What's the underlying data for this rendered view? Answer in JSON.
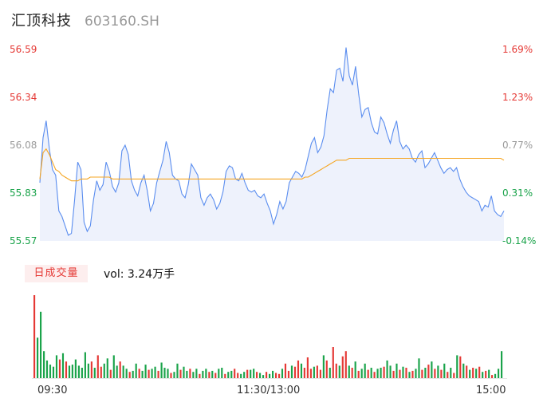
{
  "header": {
    "name": "汇顶科技",
    "code": "603160.SH"
  },
  "volume_panel": {
    "tag": "日成交量",
    "value_label": "vol: 3.24万手"
  },
  "colors": {
    "price_line": "#5a8def",
    "avg_line": "#f5a623",
    "up": "#e53935",
    "down": "#1aa34a",
    "area": "#eef2fc"
  },
  "chart_data": {
    "type": "line",
    "title": "",
    "price_axis": {
      "ticks": [
        "56.59",
        "56.34",
        "56.08",
        "55.83",
        "55.57"
      ],
      "ylim": [
        55.57,
        56.59
      ]
    },
    "pct_axis": {
      "ticks": [
        "1.69%",
        "1.23%",
        "0.77%",
        "0.31%",
        "-0.14%"
      ]
    },
    "x_ticks": [
      "09:30",
      "11:30/13:00",
      "15:00"
    ],
    "series": [
      {
        "values": [
          55.88,
          56.12,
          56.21,
          56.06,
          55.95,
          55.92,
          55.73,
          55.7,
          55.65,
          55.6,
          55.61,
          55.79,
          55.99,
          55.95,
          55.67,
          55.62,
          55.65,
          55.79,
          55.89,
          55.84,
          55.87,
          55.99,
          55.94,
          55.86,
          55.83,
          55.88,
          56.05,
          56.08,
          56.03,
          55.89,
          55.84,
          55.81,
          55.88,
          55.92,
          55.84,
          55.73,
          55.77,
          55.88,
          55.94,
          56.0,
          56.1,
          56.04,
          55.92,
          55.9,
          55.89,
          55.82,
          55.8,
          55.87,
          55.98,
          55.95,
          55.92,
          55.8,
          55.76,
          55.8,
          55.82,
          55.79,
          55.74,
          55.77,
          55.83,
          55.94,
          55.97,
          55.96,
          55.9,
          55.89,
          55.93,
          55.88,
          55.84,
          55.83,
          55.84,
          55.81,
          55.8,
          55.82,
          55.77,
          55.73,
          55.66,
          55.71,
          55.78,
          55.74,
          55.78,
          55.88,
          55.91,
          55.94,
          55.93,
          55.91,
          55.95,
          56.02,
          56.09,
          56.12,
          56.04,
          56.07,
          56.13,
          56.27,
          56.38,
          56.36,
          56.48,
          56.49,
          56.42,
          56.6,
          56.45,
          56.4,
          56.5,
          56.35,
          56.23,
          56.27,
          56.28,
          56.2,
          56.15,
          56.14,
          56.23,
          56.2,
          56.14,
          56.09,
          56.16,
          56.21,
          56.1,
          56.06,
          56.08,
          56.06,
          56.01,
          55.99,
          56.03,
          56.05,
          55.96,
          55.98,
          56.01,
          56.04,
          56.0,
          55.96,
          55.93,
          55.95,
          55.96,
          55.94,
          55.96,
          55.9,
          55.86,
          55.83,
          55.81,
          55.8,
          55.79,
          55.78,
          55.73,
          55.76,
          55.75,
          55.81,
          55.73,
          55.71,
          55.7,
          55.73
        ]
      },
      {
        "values": [
          55.9,
          56.04,
          56.06,
          56.03,
          55.99,
          55.95,
          55.94,
          55.92,
          55.91,
          55.9,
          55.89,
          55.89,
          55.89,
          55.9,
          55.9,
          55.9,
          55.91,
          55.91,
          55.91,
          55.91,
          55.91,
          55.91,
          55.91,
          55.9,
          55.9,
          55.9,
          55.9,
          55.9,
          55.9,
          55.9,
          55.9,
          55.9,
          55.9,
          55.9,
          55.9,
          55.9,
          55.9,
          55.9,
          55.9,
          55.9,
          55.9,
          55.9,
          55.9,
          55.9,
          55.9,
          55.9,
          55.9,
          55.9,
          55.9,
          55.9,
          55.9,
          55.9,
          55.9,
          55.9,
          55.9,
          55.9,
          55.9,
          55.9,
          55.9,
          55.9,
          55.9,
          55.9,
          55.9,
          55.9,
          55.9,
          55.9,
          55.9,
          55.9,
          55.9,
          55.9,
          55.9,
          55.9,
          55.9,
          55.9,
          55.9,
          55.9,
          55.9,
          55.9,
          55.9,
          55.9,
          55.9,
          55.9,
          55.9,
          55.9,
          55.91,
          55.91,
          55.92,
          55.93,
          55.94,
          55.95,
          55.96,
          55.97,
          55.98,
          55.99,
          56.0,
          56.0,
          56.0,
          56.0,
          56.01,
          56.01,
          56.01,
          56.01,
          56.01,
          56.01,
          56.01,
          56.01,
          56.01,
          56.01,
          56.01,
          56.01,
          56.01,
          56.01,
          56.01,
          56.01,
          56.01,
          56.01,
          56.01,
          56.01,
          56.01,
          56.01,
          56.01,
          56.01,
          56.01,
          56.01,
          56.01,
          56.01,
          56.01,
          56.01,
          56.01,
          56.01,
          56.01,
          56.01,
          56.01,
          56.01,
          56.01,
          56.01,
          56.01,
          56.01,
          56.01,
          56.01,
          56.01,
          56.01,
          56.01,
          56.01,
          56.01,
          56.01,
          56.01,
          56.0
        ]
      },
      {
        "values": [
          80,
          39,
          64,
          26,
          17,
          13,
          11,
          22,
          18,
          24,
          16,
          12,
          13,
          18,
          12,
          10,
          25,
          14,
          16,
          10,
          22,
          11,
          14,
          19,
          8,
          22,
          12,
          16,
          12,
          9,
          6,
          7,
          14,
          9,
          7,
          13,
          8,
          9,
          11,
          7,
          15,
          10,
          9,
          5,
          6,
          14,
          8,
          11,
          7,
          9,
          6,
          9,
          4,
          7,
          9,
          6,
          7,
          5,
          9,
          10,
          4,
          6,
          7,
          9,
          5,
          4,
          6,
          8,
          8,
          9,
          6,
          5,
          3,
          6,
          4,
          7,
          5,
          4,
          9,
          14,
          7,
          12,
          11,
          17,
          14,
          10,
          20,
          9,
          11,
          12,
          8,
          22,
          17,
          10,
          30,
          14,
          12,
          21,
          26,
          12,
          10,
          16,
          7,
          9,
          14,
          8,
          10,
          6,
          9,
          10,
          11,
          17,
          12,
          7,
          14,
          8,
          11,
          10,
          6,
          7,
          9,
          19,
          8,
          10,
          13,
          16,
          9,
          12,
          8,
          14,
          6,
          10,
          5,
          22,
          21,
          14,
          12,
          8,
          10,
          9,
          11,
          6,
          7,
          8,
          3,
          4,
          9,
          26
        ]
      },
      {
        "values": [
          1,
          0,
          0,
          0,
          0,
          0,
          0,
          0,
          1,
          0,
          1,
          0,
          0,
          0,
          0,
          0,
          0,
          0,
          1,
          0,
          1,
          1,
          0,
          0,
          1,
          0,
          0,
          1,
          0,
          0,
          1,
          0,
          0,
          1,
          0,
          0,
          1,
          0,
          0,
          1,
          0,
          0,
          0,
          1,
          0,
          0,
          1,
          0,
          0,
          1,
          0,
          0,
          1,
          0,
          0,
          1,
          0,
          1,
          0,
          0,
          1,
          0,
          0,
          1,
          1,
          0,
          0,
          1,
          0,
          0,
          1,
          0,
          0,
          1,
          0,
          0,
          1,
          1,
          0,
          1,
          1,
          0,
          1,
          1,
          0,
          1,
          1,
          1,
          0,
          1,
          1,
          0,
          1,
          0,
          1,
          1,
          0,
          1,
          1,
          0,
          1,
          0,
          1,
          0,
          0,
          1,
          0,
          1,
          0,
          0,
          1,
          0,
          0,
          1,
          0,
          1,
          0,
          1,
          0,
          1,
          0,
          0,
          1,
          0,
          1,
          0,
          1,
          0,
          1,
          0,
          1,
          0,
          1,
          0,
          1,
          0,
          1,
          0,
          1,
          0,
          1,
          0,
          1,
          0,
          1,
          0,
          0,
          0
        ]
      }
    ]
  }
}
